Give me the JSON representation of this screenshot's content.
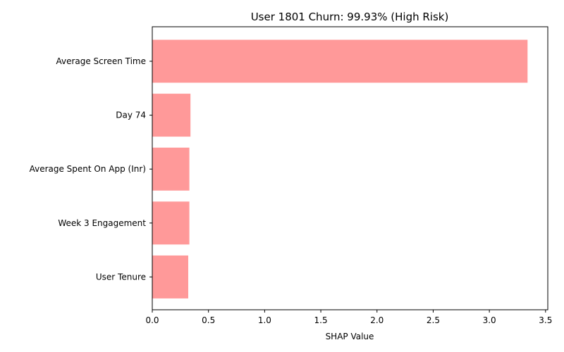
{
  "chart_data": {
    "type": "bar",
    "orientation": "horizontal",
    "title": "User 1801 Churn: 99.93% (High Risk)",
    "xlabel": "SHAP Value",
    "ylabel": "",
    "categories": [
      "Average Screen Time",
      "Day 74",
      "Average Spent On App (Inr)",
      "Week 3 Engagement",
      "User Tenure"
    ],
    "values": [
      3.34,
      0.34,
      0.33,
      0.33,
      0.32
    ],
    "xlim": [
      0,
      3.52
    ],
    "xticks": [
      0,
      0.5,
      1,
      1.5,
      2,
      2.5,
      3,
      3.5
    ],
    "xtick_labels": [
      "0.0",
      "0.5",
      "1.0",
      "1.5",
      "2.0",
      "2.5",
      "3.0",
      "3.5"
    ],
    "grid": false,
    "legend": null,
    "bar_color": "#ff9999"
  }
}
